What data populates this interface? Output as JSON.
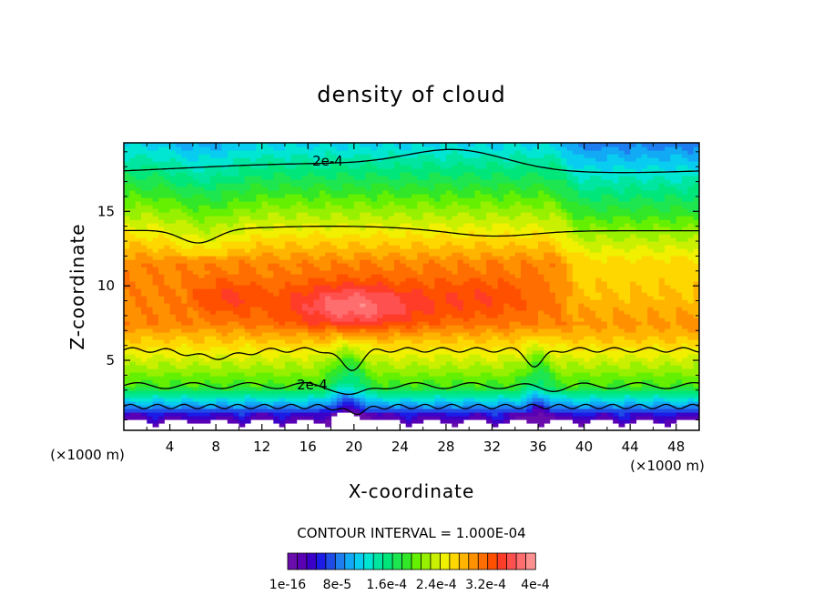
{
  "chart_data": {
    "type": "heatmap",
    "title": "density of cloud",
    "xlabel": "X-coordinate",
    "ylabel": "Z-coordinate",
    "x_unit": "(×1000 m)",
    "y_unit": "(×1000 m)",
    "xlim": [
      0,
      50
    ],
    "ylim": [
      0.3,
      19.6
    ],
    "x_ticks": [
      4,
      8,
      12,
      16,
      20,
      24,
      28,
      32,
      36,
      40,
      44,
      48
    ],
    "y_ticks": [
      5,
      10,
      15
    ],
    "contour_interval_text": "CONTOUR INTERVAL = 1.000E-04",
    "contour_labels": [
      "2e-4",
      "2e-4"
    ],
    "colorbar": {
      "tick_labels": [
        "1e-16",
        "8e-5",
        "1.6e-4",
        "2.4e-4",
        "3.2e-4",
        "4e-4"
      ],
      "value_range": [
        1e-16,
        0.0004
      ],
      "colors": [
        "#6a0dad",
        "#5a00b4",
        "#3a00c8",
        "#1c1ce6",
        "#1f4be6",
        "#1e7ef0",
        "#12a9f5",
        "#08cdf0",
        "#00e6d2",
        "#00e6a0",
        "#00e67a",
        "#1ee650",
        "#32e628",
        "#64f000",
        "#96f000",
        "#c8f000",
        "#f0f000",
        "#ffd700",
        "#ffb400",
        "#ff9100",
        "#ff6e00",
        "#ff5000",
        "#ff3c28",
        "#ff5050",
        "#ff6e6e",
        "#ff9090"
      ]
    },
    "field_model": {
      "description_levels": "approximate cloud density in units of 1e-4",
      "peak_value": 3.9,
      "peak_location": [
        20,
        8.8
      ]
    }
  }
}
